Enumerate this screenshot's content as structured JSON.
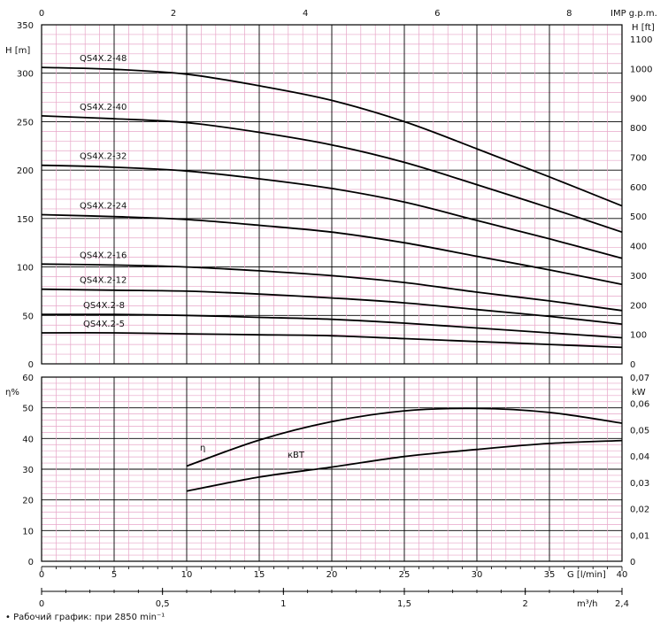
{
  "footer": "• Рабочий график: при 2850 min⁻¹",
  "colors": {
    "grid_minor": "#e7a6c8",
    "grid_major": "#000000",
    "curve": "#000000"
  },
  "chart_data": [
    {
      "type": "line",
      "xlabel": "G [l/min]",
      "x_range": [
        0,
        40
      ],
      "x_ticks": [
        "0",
        "5",
        "10",
        "15",
        "20",
        "25",
        "30",
        "35",
        "40"
      ],
      "secondary_x": {
        "label": "m³/h",
        "range": [
          0,
          2.4
        ],
        "ticks": [
          "0",
          "0,5",
          "1",
          "1,5",
          "2",
          "2,4"
        ],
        "tick_values": [
          0,
          0.5,
          1,
          1.5,
          2,
          2.4
        ]
      },
      "top_x": {
        "label": "IMP g.p.m.",
        "ticks": [
          "0",
          "2",
          "4",
          "6",
          "8"
        ],
        "tick_values": [
          0,
          2,
          4,
          6,
          8
        ],
        "range": [
          0,
          8.8
        ]
      },
      "ylabel": "H [m]",
      "ylim": [
        0,
        350
      ],
      "y_ticks": [
        0,
        50,
        100,
        150,
        200,
        250,
        300,
        350
      ],
      "secondary_y": {
        "label": "H [ft]",
        "range": [
          0,
          1148
        ],
        "ticks": [
          0,
          100,
          200,
          300,
          400,
          500,
          600,
          700,
          800,
          900,
          1000,
          1100
        ]
      },
      "grid": true,
      "series": [
        {
          "name": "QS4X.2-48",
          "x": [
            0,
            5,
            10,
            15,
            20,
            25,
            30,
            35,
            40
          ],
          "y": [
            306,
            304,
            299,
            287,
            272,
            250,
            222,
            193,
            163
          ]
        },
        {
          "name": "QS4X.2-40",
          "x": [
            0,
            5,
            10,
            15,
            20,
            25,
            30,
            35,
            40
          ],
          "y": [
            256,
            253,
            249,
            239,
            226,
            208,
            185,
            161,
            136
          ]
        },
        {
          "name": "QS4X.2-32",
          "x": [
            0,
            5,
            10,
            15,
            20,
            25,
            30,
            35,
            40
          ],
          "y": [
            205,
            203,
            199,
            191,
            181,
            167,
            148,
            129,
            109
          ]
        },
        {
          "name": "QS4X.2-24",
          "x": [
            0,
            5,
            10,
            15,
            20,
            25,
            30,
            35,
            40
          ],
          "y": [
            154,
            152,
            149,
            143,
            136,
            125,
            111,
            97,
            82
          ]
        },
        {
          "name": "QS4X.2-16",
          "x": [
            0,
            5,
            10,
            15,
            20,
            25,
            30,
            35,
            40
          ],
          "y": [
            103,
            102,
            100,
            96,
            91,
            84,
            74,
            65,
            55
          ]
        },
        {
          "name": "QS4X.2-12",
          "x": [
            0,
            5,
            10,
            15,
            20,
            25,
            30,
            35,
            40
          ],
          "y": [
            77,
            76,
            75,
            72,
            68,
            63,
            56,
            49,
            41
          ]
        },
        {
          "name": "QS4X.2-8",
          "x": [
            0,
            5,
            10,
            15,
            20,
            25,
            30,
            35,
            40
          ],
          "y": [
            51,
            51,
            50,
            48,
            46,
            42,
            37,
            32,
            27
          ]
        },
        {
          "name": "QS4X.2-5",
          "x": [
            0,
            5,
            10,
            15,
            20,
            25,
            30,
            35,
            40
          ],
          "y": [
            32,
            32,
            31,
            30,
            29,
            26,
            23,
            20,
            17
          ]
        }
      ]
    },
    {
      "type": "line",
      "xlabel": "G [l/min]",
      "x_range": [
        0,
        40
      ],
      "ylabel": "η%",
      "ylim": [
        0,
        60
      ],
      "y_ticks": [
        0,
        10,
        20,
        30,
        40,
        50,
        60
      ],
      "secondary_y": {
        "label": "kW",
        "range": [
          0,
          0.07
        ],
        "ticks": [
          "0",
          "0,01",
          "0,02",
          "0,03",
          "0,04",
          "0,05",
          "0,06",
          "0,07"
        ],
        "tick_values": [
          0,
          0.01,
          0.02,
          0.03,
          0.04,
          0.05,
          0.06,
          0.07
        ]
      },
      "grid": true,
      "series": [
        {
          "name": "η",
          "axis": "left",
          "x": [
            10,
            15,
            20,
            25,
            30,
            35,
            40
          ],
          "y": [
            31,
            39.5,
            45.5,
            49,
            49.8,
            48.5,
            45
          ]
        },
        {
          "name": "кВТ",
          "axis": "right",
          "x": [
            10,
            15,
            20,
            25,
            30,
            35,
            40
          ],
          "y": [
            0.0267,
            0.032,
            0.0358,
            0.0398,
            0.0425,
            0.0448,
            0.0459
          ]
        }
      ]
    }
  ]
}
